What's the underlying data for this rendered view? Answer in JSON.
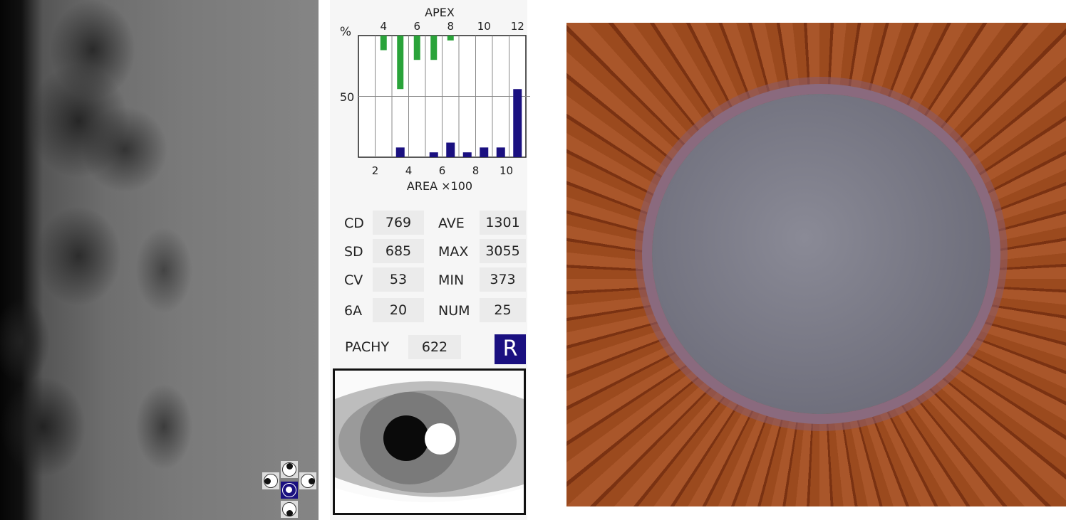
{
  "chart_data": {
    "type": "bar",
    "ylabel": "%",
    "ytick_labels": [
      "50"
    ],
    "ylim": [
      0,
      100
    ],
    "grid": true,
    "top_axis": {
      "label": "APEX",
      "tick_labels": [
        "4",
        "6",
        "8",
        "10",
        "12"
      ]
    },
    "bottom_axis": {
      "label": "AREA ×100",
      "tick_labels": [
        "2",
        "4",
        "6",
        "8",
        "10"
      ]
    },
    "series": [
      {
        "name": "APEX",
        "color": "#2aa33a",
        "direction": "down-from-top",
        "values": [
          0,
          12,
          44,
          20,
          20,
          4,
          0,
          0,
          0,
          0
        ]
      },
      {
        "name": "AREA",
        "color": "#1a1080",
        "direction": "up-from-bottom",
        "values": [
          0,
          0,
          8,
          0,
          4,
          12,
          4,
          8,
          8,
          56
        ]
      }
    ]
  },
  "stats": [
    {
      "label": "CD",
      "value": "769",
      "label2": "AVE",
      "value2": "1301"
    },
    {
      "label": "SD",
      "value": "685",
      "label2": "MAX",
      "value2": "3055"
    },
    {
      "label": "CV",
      "value": "53",
      "label2": "MIN",
      "value2": "373"
    },
    {
      "label": "6A",
      "value": "20",
      "label2": "NUM",
      "value2": "25"
    }
  ],
  "pachy": {
    "label": "PACHY",
    "value": "622"
  },
  "eye_side": "R",
  "colors": {
    "accent": "#1a1080",
    "apex_bar": "#2aa33a",
    "area_bar": "#1a1080"
  }
}
